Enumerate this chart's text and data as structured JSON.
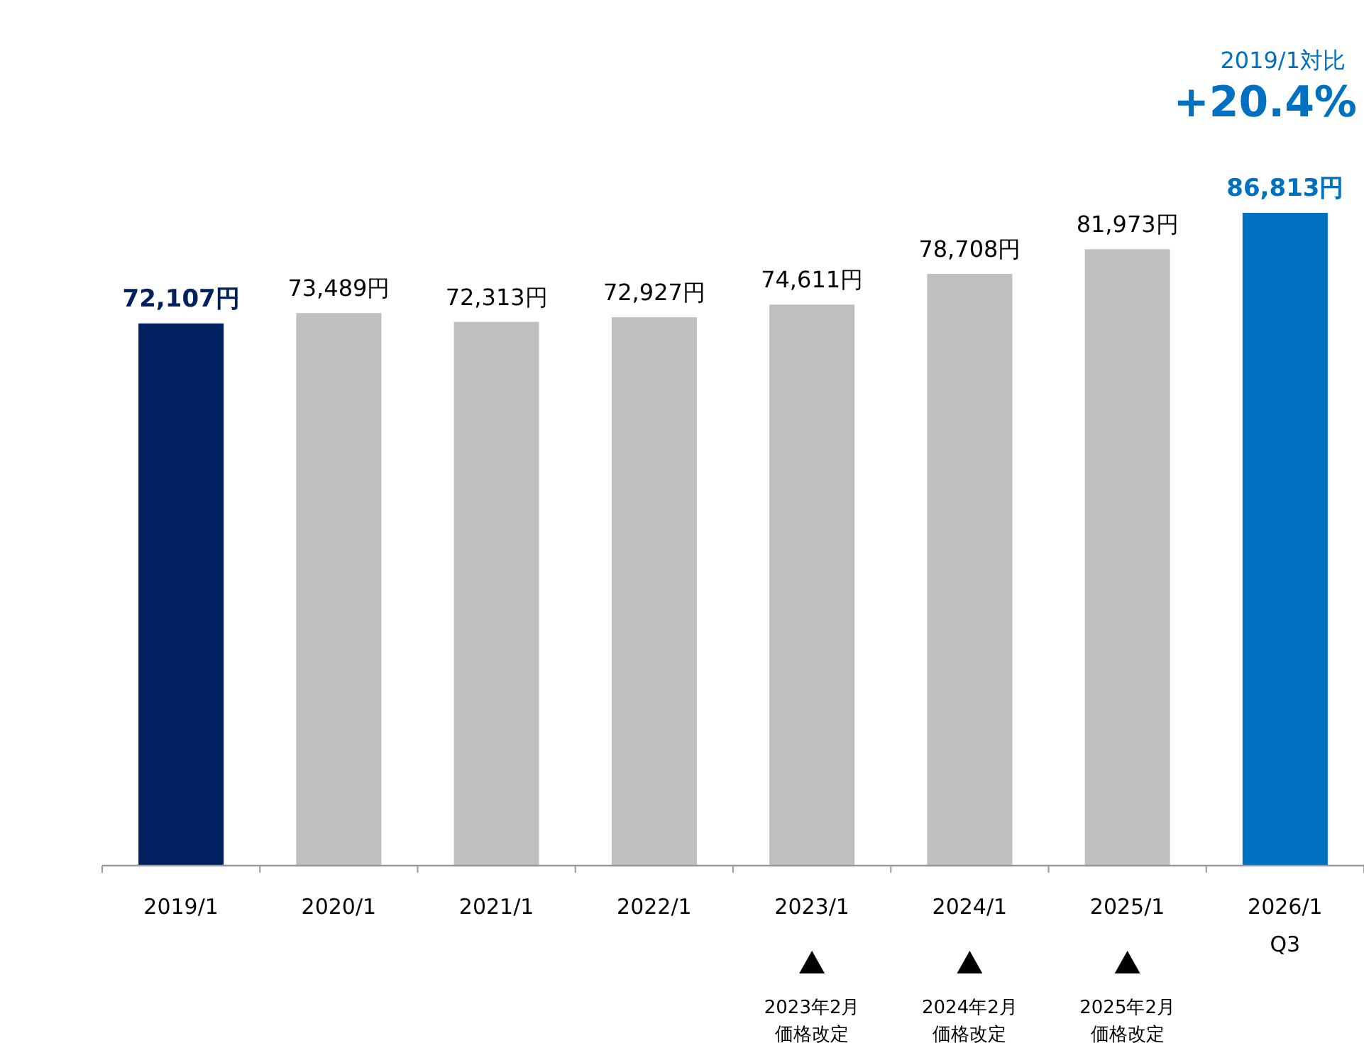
{
  "chart_data": {
    "type": "bar",
    "categories": [
      "2019/1",
      "2020/1",
      "2021/1",
      "2022/1",
      "2023/1",
      "2024/1",
      "2025/1",
      "2026/1\nQ3"
    ],
    "values": [
      72107,
      73489,
      72313,
      72927,
      74611,
      78708,
      81973,
      86813
    ],
    "colors": [
      "#002060",
      "#bfbfbf",
      "#bfbfbf",
      "#bfbfbf",
      "#bfbfbf",
      "#bfbfbf",
      "#bfbfbf",
      "#0070c0"
    ],
    "value_labels": [
      "**72,107円**",
      "73,489円",
      "72,313円",
      "72,927円",
      "74,611円",
      "78,708円",
      "81,973円",
      "**86,813円**"
    ],
    "tick_labels": "x",
    "annotations": [
      "2019/1対比",
      "+20.4%",
      "2023年2月価格改定",
      "2024年2月価格改定",
      "2025年2月価格改定"
    ]
  }
}
